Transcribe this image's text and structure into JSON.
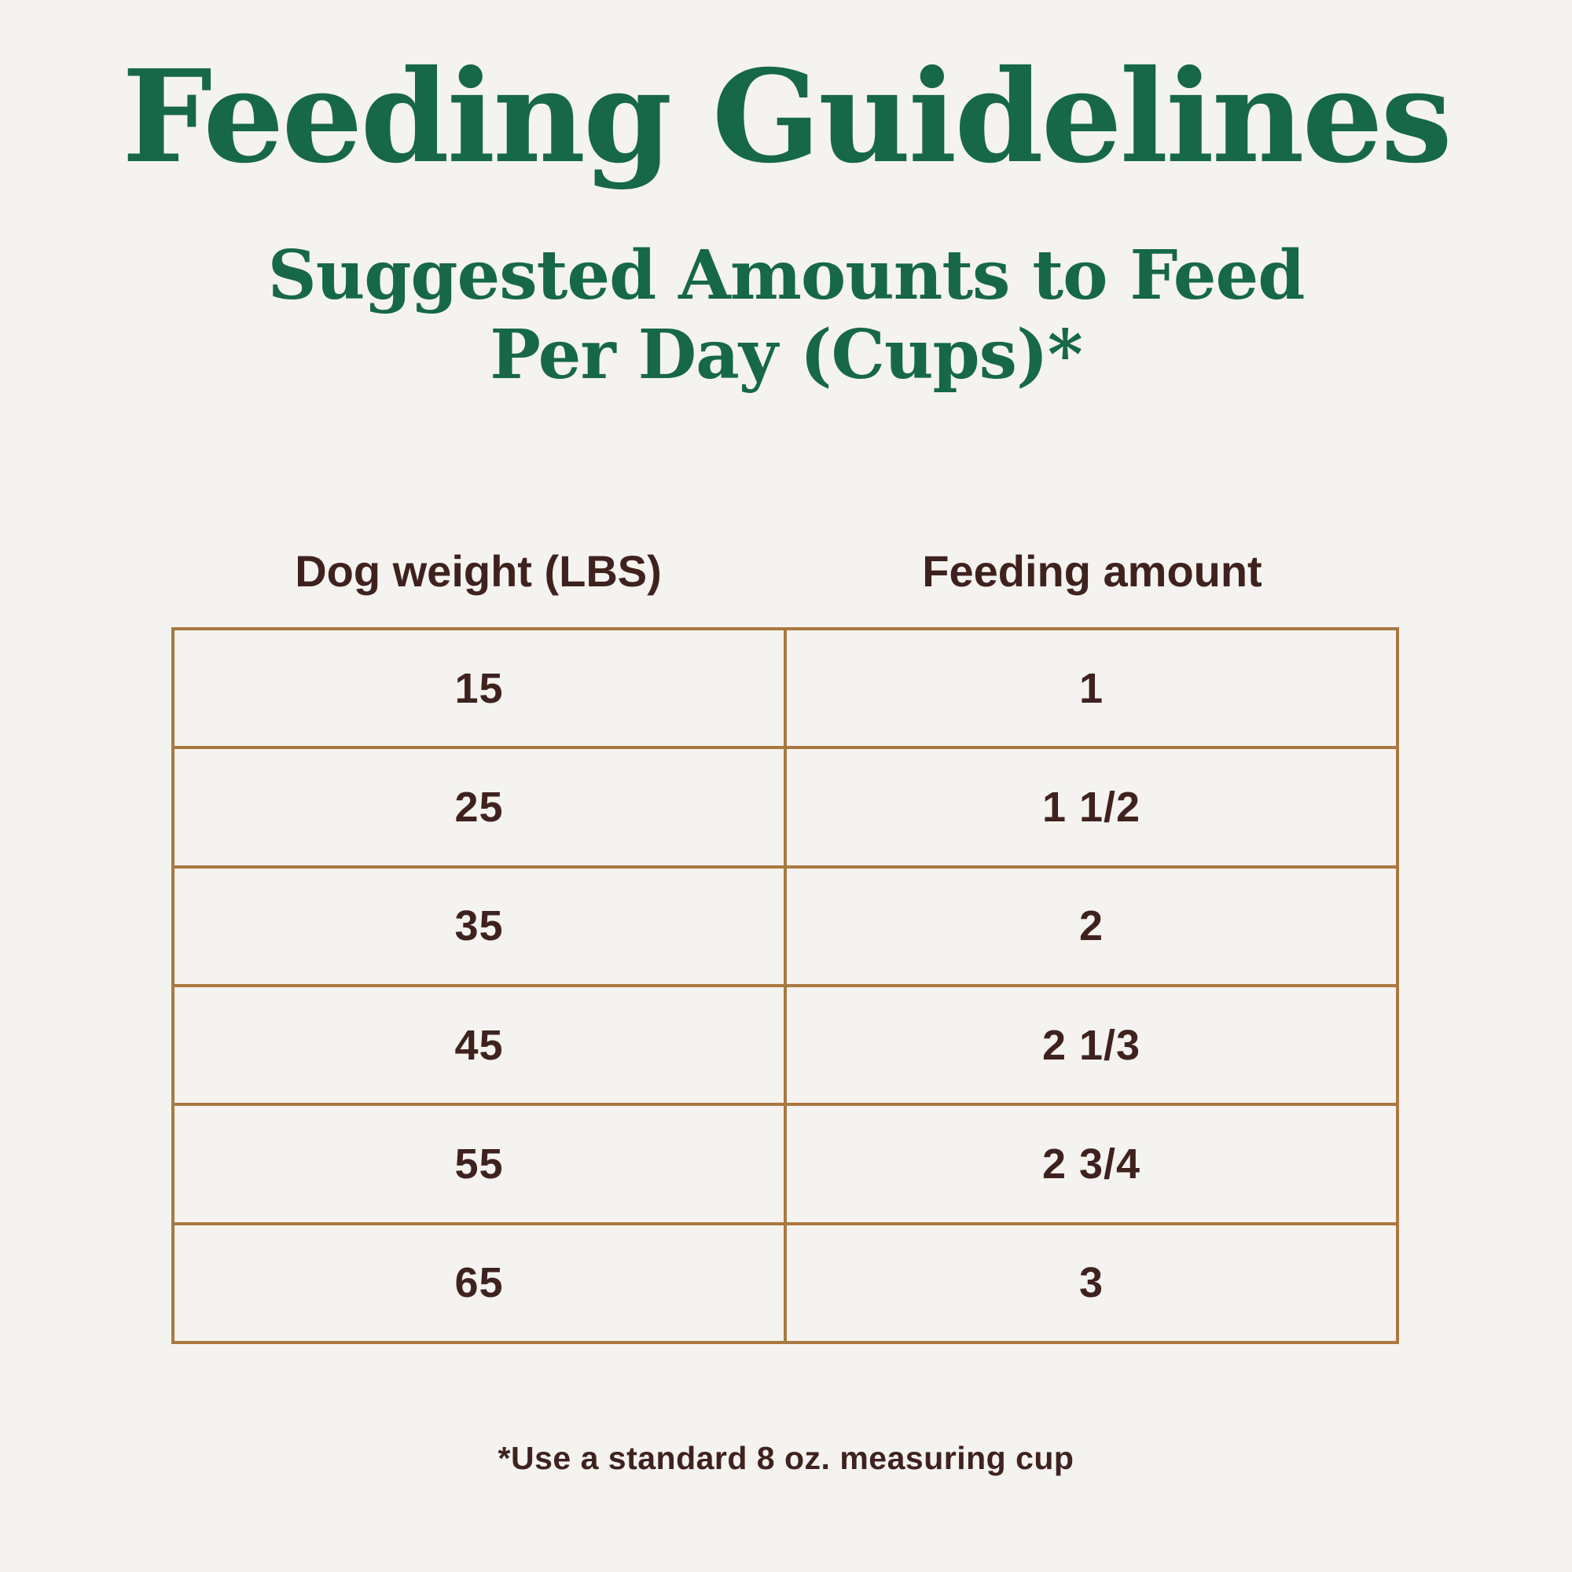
{
  "colors": {
    "bg": "#f4f3ef",
    "green": "#166848",
    "maroon": "#3f221e",
    "tan": "#aa7840"
  },
  "header": {
    "title": "Feeding Guidelines",
    "subtitle_line1": "Suggested Amounts to Feed",
    "subtitle_line2": "Per Day (Cups)*"
  },
  "table": {
    "columns": [
      "Dog weight (LBS)",
      "Feeding amount"
    ],
    "rows": [
      {
        "weight": "15",
        "amount": "1"
      },
      {
        "weight": "25",
        "amount": "1 1/2"
      },
      {
        "weight": "35",
        "amount": "2"
      },
      {
        "weight": "45",
        "amount": "2 1/3"
      },
      {
        "weight": "55",
        "amount": "2 3/4"
      },
      {
        "weight": "65",
        "amount": "3"
      }
    ]
  },
  "footnote": "*Use a standard 8 oz. measuring cup",
  "chart_data": {
    "type": "table",
    "title": "Feeding Guidelines",
    "subtitle": "Suggested Amounts to Feed Per Day (Cups)*",
    "columns": [
      "Dog weight (LBS)",
      "Feeding amount"
    ],
    "rows": [
      [
        "15",
        "1"
      ],
      [
        "25",
        "1 1/2"
      ],
      [
        "35",
        "2"
      ],
      [
        "45",
        "2 1/3"
      ],
      [
        "55",
        "2 3/4"
      ],
      [
        "65",
        "3"
      ]
    ],
    "dog_weight_lbs": [
      15,
      25,
      35,
      45,
      55,
      65
    ],
    "feeding_amount_cups": [
      1,
      1.5,
      2,
      2.333,
      2.75,
      3
    ],
    "note": "*Use a standard 8 oz. measuring cup"
  }
}
